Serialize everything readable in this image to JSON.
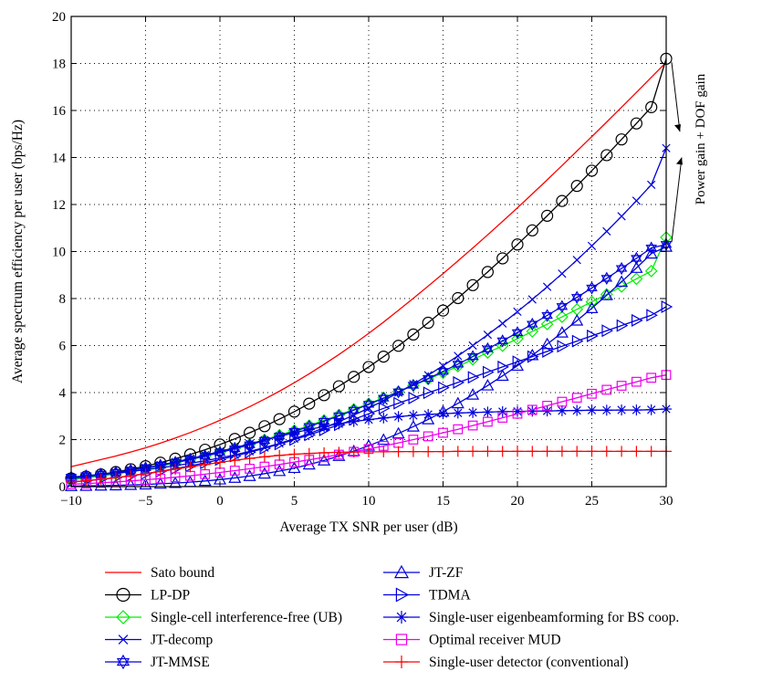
{
  "chart_data": {
    "type": "line",
    "xlabel": "Average TX SNR per user (dB)",
    "ylabel": "Average spectrum efficiency per user (bps/Hz)",
    "xlim": [
      -10,
      30
    ],
    "ylim": [
      0,
      20
    ],
    "xticks": [
      -10,
      -5,
      0,
      5,
      10,
      15,
      20,
      25,
      30
    ],
    "yticks": [
      0,
      2,
      4,
      6,
      8,
      10,
      12,
      14,
      16,
      18,
      20
    ],
    "grid": "dotted",
    "legend_position": "below plot, two columns",
    "annotation": "Power gain + DOF gain",
    "x": [
      -10,
      -9,
      -8,
      -7,
      -6,
      -5,
      -4,
      -3,
      -2,
      -1,
      0,
      1,
      2,
      3,
      4,
      5,
      6,
      7,
      8,
      9,
      10,
      11,
      12,
      13,
      14,
      15,
      16,
      17,
      18,
      19,
      20,
      21,
      22,
      23,
      24,
      25,
      26,
      27,
      28,
      29,
      30
    ],
    "series": [
      {
        "name": "Sato bound",
        "color": "#ff0000",
        "marker": "none",
        "values": [
          0.85,
          1.0,
          1.15,
          1.3,
          1.47,
          1.65,
          1.85,
          2.07,
          2.3,
          2.55,
          2.82,
          3.1,
          3.4,
          3.72,
          4.06,
          4.42,
          4.8,
          5.2,
          5.62,
          6.06,
          6.52,
          7.0,
          7.5,
          8.01,
          8.53,
          9.06,
          9.6,
          10.15,
          10.71,
          11.28,
          11.86,
          12.45,
          13.05,
          13.66,
          14.27,
          14.89,
          15.51,
          16.14,
          16.77,
          17.41,
          18.05
        ]
      },
      {
        "name": "LP-DP",
        "color": "#000000",
        "marker": "circle",
        "values": [
          0.35,
          0.43,
          0.52,
          0.62,
          0.74,
          0.87,
          1.02,
          1.19,
          1.37,
          1.57,
          1.79,
          2.03,
          2.29,
          2.57,
          2.87,
          3.19,
          3.53,
          3.89,
          4.27,
          4.67,
          5.09,
          5.53,
          5.99,
          6.47,
          6.97,
          7.49,
          8.02,
          8.57,
          9.13,
          9.71,
          10.3,
          10.9,
          11.52,
          12.15,
          12.79,
          13.44,
          14.1,
          14.77,
          15.45,
          16.14,
          18.2
        ]
      },
      {
        "name": "Single-cell interference-free (UB)",
        "color": "#00ee00",
        "marker": "diamond",
        "values": [
          0.3,
          0.37,
          0.45,
          0.54,
          0.64,
          0.75,
          0.87,
          1.0,
          1.14,
          1.29,
          1.45,
          1.62,
          1.8,
          1.99,
          2.19,
          2.39,
          2.6,
          2.82,
          3.05,
          3.29,
          3.53,
          3.78,
          4.04,
          4.3,
          4.57,
          4.84,
          5.12,
          5.41,
          5.7,
          5.99,
          6.29,
          6.6,
          6.91,
          7.22,
          7.54,
          7.86,
          8.18,
          8.51,
          8.84,
          9.17,
          10.6
        ]
      },
      {
        "name": "JT-decomp",
        "color": "#0000dd",
        "marker": "x",
        "values": [
          0.4,
          0.45,
          0.51,
          0.57,
          0.64,
          0.72,
          0.8,
          0.89,
          0.99,
          1.1,
          1.22,
          1.35,
          1.5,
          1.66,
          1.84,
          2.04,
          2.26,
          2.5,
          2.76,
          3.04,
          3.34,
          3.66,
          4.0,
          4.36,
          4.74,
          5.14,
          5.56,
          6.0,
          6.46,
          6.94,
          7.44,
          7.96,
          8.5,
          9.06,
          9.64,
          10.24,
          10.86,
          11.5,
          12.16,
          12.84,
          14.4
        ]
      },
      {
        "name": "JT-MMSE",
        "color": "#0000dd",
        "marker": "star-triangle",
        "values": [
          0.4,
          0.46,
          0.53,
          0.61,
          0.7,
          0.8,
          0.91,
          1.03,
          1.16,
          1.3,
          1.45,
          1.61,
          1.78,
          1.96,
          2.15,
          2.35,
          2.56,
          2.78,
          3.01,
          3.25,
          3.5,
          3.76,
          4.03,
          4.31,
          4.6,
          4.9,
          5.21,
          5.53,
          5.86,
          6.2,
          6.55,
          6.91,
          7.28,
          7.66,
          8.05,
          8.45,
          8.86,
          9.28,
          9.71,
          10.15,
          10.3
        ]
      },
      {
        "name": "JT-ZF",
        "color": "#0000dd",
        "marker": "triangle-up",
        "values": [
          0.02,
          0.03,
          0.04,
          0.05,
          0.07,
          0.09,
          0.12,
          0.15,
          0.19,
          0.24,
          0.3,
          0.37,
          0.45,
          0.55,
          0.66,
          0.79,
          0.94,
          1.11,
          1.3,
          1.51,
          1.74,
          1.99,
          2.26,
          2.55,
          2.86,
          3.19,
          3.54,
          3.91,
          4.3,
          4.71,
          5.14,
          5.59,
          6.06,
          6.55,
          7.06,
          7.59,
          8.14,
          8.71,
          9.3,
          9.91,
          10.2
        ]
      },
      {
        "name": "TDMA",
        "color": "#0000dd",
        "marker": "triangle-right",
        "values": [
          0.2,
          0.25,
          0.31,
          0.38,
          0.46,
          0.55,
          0.65,
          0.76,
          0.88,
          1.01,
          1.15,
          1.3,
          1.46,
          1.63,
          1.81,
          2.0,
          2.2,
          2.41,
          2.63,
          2.86,
          3.1,
          3.33,
          3.55,
          3.77,
          3.99,
          4.21,
          4.43,
          4.65,
          4.87,
          5.09,
          5.31,
          5.53,
          5.75,
          5.97,
          6.19,
          6.41,
          6.63,
          6.85,
          7.07,
          7.29,
          7.65
        ]
      },
      {
        "name": "Single-user eigenbeamforming for BS coop.",
        "color": "#0000dd",
        "marker": "asterisk",
        "values": [
          0.35,
          0.42,
          0.5,
          0.59,
          0.69,
          0.8,
          0.92,
          1.05,
          1.19,
          1.34,
          1.5,
          1.66,
          1.82,
          1.98,
          2.14,
          2.29,
          2.43,
          2.56,
          2.67,
          2.77,
          2.85,
          2.92,
          2.98,
          3.03,
          3.07,
          3.1,
          3.13,
          3.15,
          3.17,
          3.19,
          3.2,
          3.21,
          3.22,
          3.23,
          3.24,
          3.25,
          3.25,
          3.26,
          3.26,
          3.27,
          3.3
        ]
      },
      {
        "name": "Optimal receiver MUD",
        "color": "#ee00ee",
        "marker": "square",
        "values": [
          0.1,
          0.13,
          0.16,
          0.2,
          0.24,
          0.29,
          0.34,
          0.4,
          0.46,
          0.53,
          0.6,
          0.68,
          0.76,
          0.85,
          0.94,
          1.04,
          1.14,
          1.25,
          1.36,
          1.48,
          1.6,
          1.73,
          1.86,
          2.0,
          2.14,
          2.29,
          2.44,
          2.6,
          2.76,
          2.93,
          3.1,
          3.27,
          3.44,
          3.61,
          3.78,
          3.95,
          4.12,
          4.29,
          4.46,
          4.63,
          4.75
        ]
      },
      {
        "name": "Single-user detector (conventional)",
        "color": "#ff0000",
        "marker": "plus",
        "values": [
          0.2,
          0.25,
          0.31,
          0.38,
          0.46,
          0.55,
          0.64,
          0.74,
          0.84,
          0.94,
          1.03,
          1.12,
          1.2,
          1.27,
          1.33,
          1.38,
          1.41,
          1.44,
          1.46,
          1.47,
          1.48,
          1.48,
          1.49,
          1.49,
          1.49,
          1.49,
          1.5,
          1.5,
          1.5,
          1.5,
          1.5,
          1.5,
          1.5,
          1.5,
          1.5,
          1.5,
          1.5,
          1.5,
          1.5,
          1.5,
          1.5
        ]
      }
    ]
  }
}
